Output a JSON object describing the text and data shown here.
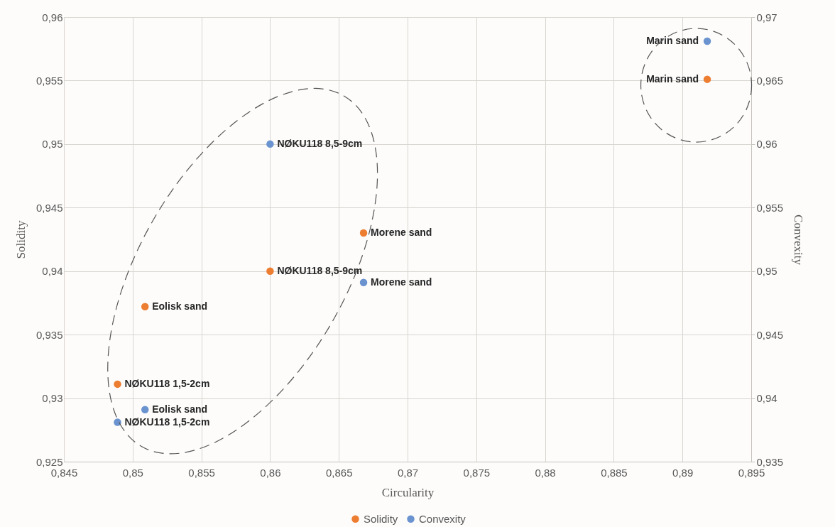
{
  "chart_data": {
    "type": "scatter",
    "xlabel": "Circularity",
    "ylabel": "Solidity",
    "y2label": "Convexity",
    "x": [
      0.86,
      0.8668,
      0.8509,
      0.8489,
      0.8918
    ],
    "xlim": [
      0.845,
      0.895
    ],
    "xticks": [
      {
        "value": 0.845,
        "label": "0,845"
      },
      {
        "value": 0.85,
        "label": "0,85"
      },
      {
        "value": 0.855,
        "label": "0,855"
      },
      {
        "value": 0.86,
        "label": "0,86"
      },
      {
        "value": 0.865,
        "label": "0,865"
      },
      {
        "value": 0.87,
        "label": "0,87"
      },
      {
        "value": 0.875,
        "label": "0,875"
      },
      {
        "value": 0.88,
        "label": "0,88"
      },
      {
        "value": 0.885,
        "label": "0,885"
      },
      {
        "value": 0.89,
        "label": "0,89"
      },
      {
        "value": 0.895,
        "label": "0,895"
      }
    ],
    "ylim": [
      0.925,
      0.96
    ],
    "yticks": [
      {
        "value": 0.925,
        "label": "0,925"
      },
      {
        "value": 0.93,
        "label": "0,93"
      },
      {
        "value": 0.935,
        "label": "0,935"
      },
      {
        "value": 0.94,
        "label": "0,94"
      },
      {
        "value": 0.945,
        "label": "0,945"
      },
      {
        "value": 0.95,
        "label": "0,95"
      },
      {
        "value": 0.955,
        "label": "0,955"
      },
      {
        "value": 0.96,
        "label": "0,96"
      }
    ],
    "y2lim": [
      0.935,
      0.97
    ],
    "y2ticks": [
      {
        "value": 0.935,
        "label": "0,935"
      },
      {
        "value": 0.94,
        "label": "0,94"
      },
      {
        "value": 0.945,
        "label": "0,945"
      },
      {
        "value": 0.95,
        "label": "0,95"
      },
      {
        "value": 0.955,
        "label": "0,955"
      },
      {
        "value": 0.96,
        "label": "0,96"
      },
      {
        "value": 0.965,
        "label": "0,965"
      },
      {
        "value": 0.97,
        "label": "0,97"
      }
    ],
    "series": [
      {
        "name": "Solidity",
        "color": "#ed7d31",
        "values": [
          0.94,
          0.943,
          0.9372,
          0.9311,
          0.9551
        ],
        "value_labels": [
          "NØKU118 8,5-9cm",
          "Morene sand",
          "Eolisk sand",
          "NØKU118 1,5-2cm",
          "Marin sand"
        ]
      },
      {
        "name": "Convexity",
        "color": "#6a93cf",
        "axis": "y2",
        "values": [
          0.96,
          0.9491,
          0.9391,
          0.9381,
          0.9681
        ],
        "value_labels": [
          "NØKU118 8,5-9cm",
          "Morene sand",
          "Eolisk sand",
          "NØKU118 1,5-2cm",
          "Marin sand"
        ]
      }
    ],
    "grid": true,
    "legend": "bottom",
    "marker": "circle"
  }
}
